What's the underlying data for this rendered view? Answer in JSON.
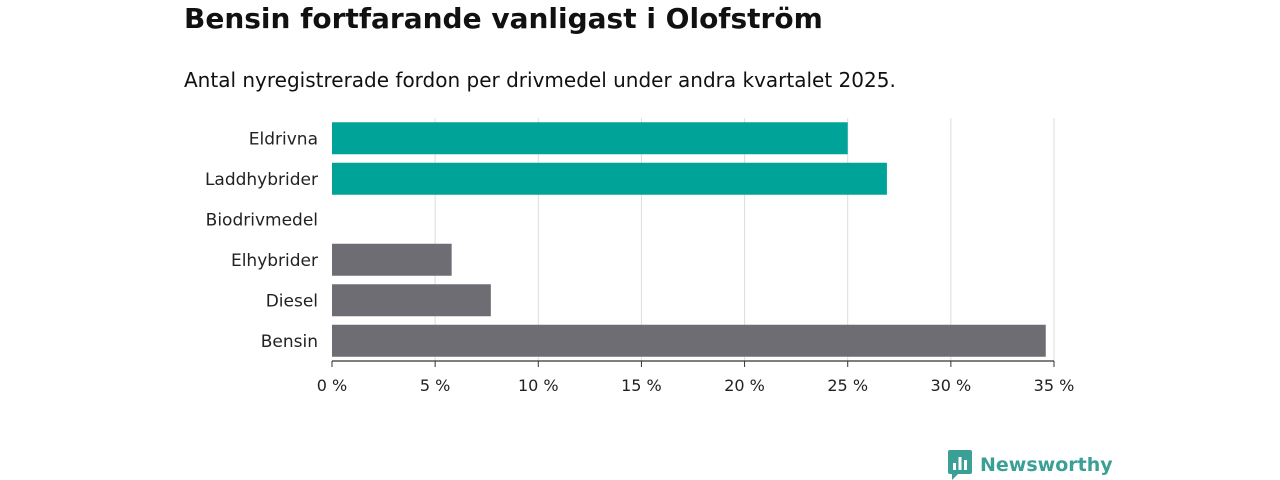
{
  "header": {
    "title": "Bensin fortfarande vanligast i Olofström",
    "subtitle": "Antal nyregistrerade fordon per drivmedel under andra kvartalet 2025."
  },
  "brand": {
    "name": "Newsworthy",
    "icon": "newsworthy-logo-icon"
  },
  "colors": {
    "highlight": "#00a398",
    "default": "#6e6d73",
    "grid": "#dddddd",
    "brand": "#3a9f95"
  },
  "chart_data": {
    "type": "bar",
    "orientation": "horizontal",
    "categories": [
      "Eldrivna",
      "Laddhybrider",
      "Biodrivmedel",
      "Elhybrider",
      "Diesel",
      "Bensin"
    ],
    "values": [
      25.0,
      26.9,
      0,
      5.8,
      7.7,
      34.6
    ],
    "bar_colors": [
      "#00a398",
      "#00a398",
      "#00a398",
      "#6e6d73",
      "#6e6d73",
      "#6e6d73"
    ],
    "xlim": [
      0,
      35
    ],
    "xticks": [
      0,
      5,
      10,
      15,
      20,
      25,
      30,
      35
    ],
    "xtick_labels": [
      "0 %",
      "5 %",
      "10 %",
      "15 %",
      "20 %",
      "25 %",
      "30 %",
      "35 %"
    ],
    "grid": true,
    "legend": "none"
  }
}
